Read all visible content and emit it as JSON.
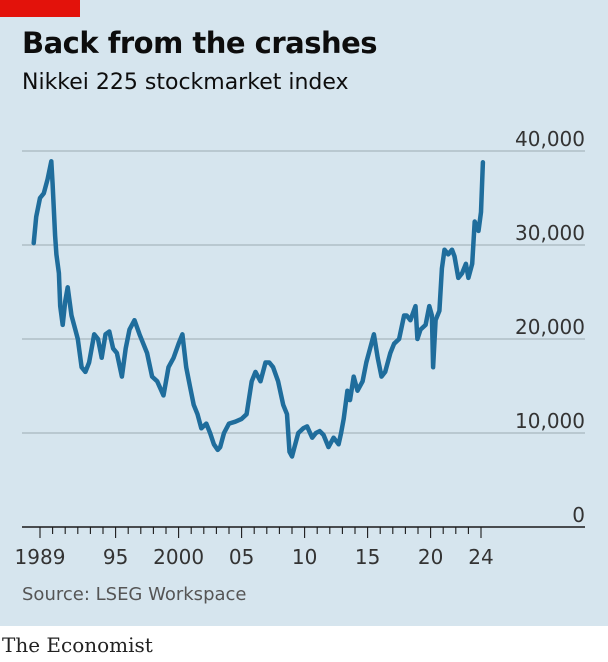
{
  "header": {
    "title": "Back from the crashes",
    "subtitle": "Nikkei 225 stockmarket index"
  },
  "footer": {
    "source": "Source: LSEG Workspace",
    "brand": "The Economist"
  },
  "colors": {
    "panel": "#d6e5ee",
    "accent_red": "#e3120b",
    "line": "#1f6d9c",
    "grid": "#a8b6bf",
    "axis": "#1a1a1a",
    "text": "#0d0d0d"
  },
  "chart_data": {
    "type": "line",
    "title": "Back from the crashes",
    "subtitle": "Nikkei 225 stockmarket index",
    "xlabel": "",
    "ylabel": "",
    "xlim": [
      1988.5,
      2025.2
    ],
    "ylim": [
      0,
      40000
    ],
    "grid": "horizontal",
    "y_ticks": [
      0,
      10000,
      20000,
      30000,
      40000
    ],
    "y_tick_labels": [
      "0",
      "10,000",
      "20,000",
      "30,000",
      "40,000"
    ],
    "x_ticks": [
      1989,
      1995,
      2000,
      2005,
      2010,
      2015,
      2020,
      2024
    ],
    "x_tick_labels": [
      "1989",
      "95",
      "2000",
      "05",
      "10",
      "15",
      "20",
      "24"
    ],
    "series": [
      {
        "name": "",
        "x": [
          1988.5,
          1988.7,
          1989.0,
          1989.3,
          1989.6,
          1989.9,
          1990.0,
          1990.2,
          1990.3,
          1990.5,
          1990.6,
          1990.8,
          1991.0,
          1991.2,
          1991.5,
          1991.8,
          1992.0,
          1992.3,
          1992.6,
          1992.9,
          1993.3,
          1993.6,
          1993.9,
          1994.2,
          1994.5,
          1994.8,
          1995.1,
          1995.5,
          1995.8,
          1996.1,
          1996.5,
          1996.9,
          1997.2,
          1997.5,
          1997.9,
          1998.3,
          1998.8,
          1999.2,
          1999.6,
          2000.0,
          2000.3,
          2000.6,
          2000.9,
          2001.2,
          2001.5,
          2001.8,
          2002.2,
          2002.5,
          2002.8,
          2003.1,
          2003.3,
          2003.6,
          2004.0,
          2004.5,
          2005.0,
          2005.4,
          2005.8,
          2006.1,
          2006.5,
          2006.9,
          2007.2,
          2007.5,
          2007.9,
          2008.3,
          2008.6,
          2008.8,
          2009.0,
          2009.2,
          2009.5,
          2009.9,
          2010.2,
          2010.6,
          2010.9,
          2011.2,
          2011.5,
          2011.9,
          2012.3,
          2012.7,
          2012.9,
          2013.1,
          2013.4,
          2013.6,
          2013.9,
          2014.2,
          2014.6,
          2014.9,
          2015.2,
          2015.5,
          2015.8,
          2016.1,
          2016.4,
          2016.8,
          2017.1,
          2017.5,
          2017.9,
          2018.1,
          2018.4,
          2018.8,
          2018.95,
          2019.2,
          2019.6,
          2019.9,
          2020.1,
          2020.2,
          2020.4,
          2020.7,
          2020.9,
          2021.1,
          2021.4,
          2021.7,
          2021.9,
          2022.2,
          2022.5,
          2022.8,
          2023.0,
          2023.3,
          2023.5,
          2023.8,
          2024.0,
          2024.15
        ],
        "values": [
          30200,
          33000,
          35000,
          35500,
          37000,
          38900,
          36500,
          31000,
          29000,
          27000,
          23500,
          21500,
          24000,
          25500,
          22500,
          21000,
          20000,
          17000,
          16500,
          17500,
          20500,
          20000,
          18000,
          20500,
          20800,
          19000,
          18500,
          16000,
          19000,
          21000,
          22000,
          20500,
          19500,
          18500,
          16000,
          15500,
          14000,
          17000,
          18000,
          19500,
          20500,
          17000,
          15000,
          13000,
          12000,
          10500,
          11000,
          10000,
          8800,
          8200,
          8500,
          10000,
          11000,
          11200,
          11500,
          12000,
          15500,
          16500,
          15500,
          17500,
          17500,
          17000,
          15500,
          13000,
          12000,
          8000,
          7500,
          8500,
          10000,
          10500,
          10700,
          9500,
          10000,
          10200,
          9800,
          8500,
          9500,
          8800,
          10000,
          11500,
          14500,
          13500,
          16000,
          14500,
          15500,
          17500,
          19000,
          20500,
          18000,
          16000,
          16500,
          18500,
          19500,
          20000,
          22500,
          22500,
          22000,
          23500,
          20000,
          21000,
          21500,
          23500,
          22500,
          17000,
          22000,
          23000,
          27500,
          29500,
          29000,
          29500,
          28800,
          26500,
          27000,
          28000,
          26500,
          28000,
          32500,
          31500,
          33500,
          38800
        ]
      }
    ]
  }
}
